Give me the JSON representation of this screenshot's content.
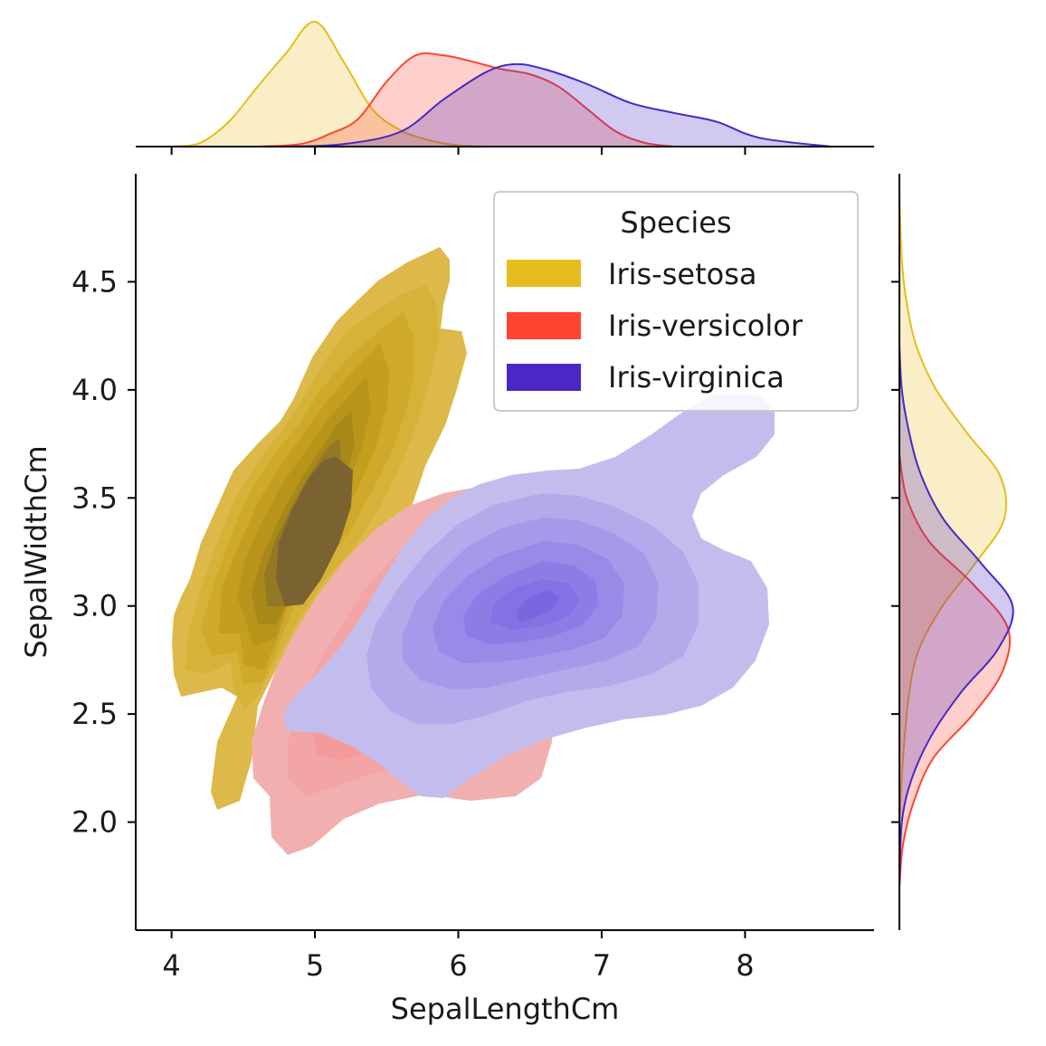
{
  "chart_data": {
    "type": "kde-joint",
    "xlabel": "SepalLengthCm",
    "ylabel": "SepalWidthCm",
    "xlim": [
      3.75,
      8.9
    ],
    "ylim": [
      1.5,
      5.0
    ],
    "xticks": [
      4,
      5,
      6,
      7,
      8
    ],
    "yticks": [
      2.0,
      2.5,
      3.0,
      3.5,
      4.0,
      4.5
    ],
    "ytick_labels": [
      "2.0",
      "2.5",
      "3.0",
      "3.5",
      "4.0",
      "4.5"
    ],
    "grid": false,
    "legend": {
      "title": "Species",
      "placement": "top-right",
      "entries": [
        "Iris-setosa",
        "Iris-versicolor",
        "Iris-virginica"
      ]
    },
    "series": [
      {
        "name": "Iris-setosa",
        "color": "#e6bd1c",
        "joint_peak": {
          "x": 5.0,
          "y": 3.4
        },
        "x_marginal": [
          [
            4.0,
            0
          ],
          [
            4.2,
            0.03
          ],
          [
            4.4,
            0.2
          ],
          [
            4.6,
            0.48
          ],
          [
            4.8,
            0.75
          ],
          [
            5.0,
            1.0
          ],
          [
            5.2,
            0.68
          ],
          [
            5.4,
            0.3
          ],
          [
            5.6,
            0.13
          ],
          [
            5.8,
            0.05
          ],
          [
            6.0,
            0.01
          ],
          [
            6.2,
            0
          ]
        ],
        "y_marginal": [
          [
            2.0,
            0
          ],
          [
            2.3,
            0.03
          ],
          [
            2.6,
            0.08
          ],
          [
            2.8,
            0.16
          ],
          [
            3.0,
            0.35
          ],
          [
            3.2,
            0.62
          ],
          [
            3.4,
            0.85
          ],
          [
            3.6,
            0.82
          ],
          [
            3.8,
            0.55
          ],
          [
            4.0,
            0.3
          ],
          [
            4.2,
            0.14
          ],
          [
            4.4,
            0.06
          ],
          [
            4.6,
            0.02
          ],
          [
            4.9,
            0
          ]
        ]
      },
      {
        "name": "Iris-versicolor",
        "color": "#ff4530",
        "joint_peak": {
          "x": 5.5,
          "y": 2.75
        },
        "x_marginal": [
          [
            4.6,
            0
          ],
          [
            4.9,
            0.02
          ],
          [
            5.1,
            0.1
          ],
          [
            5.3,
            0.22
          ],
          [
            5.5,
            0.52
          ],
          [
            5.7,
            0.73
          ],
          [
            5.9,
            0.73
          ],
          [
            6.1,
            0.68
          ],
          [
            6.3,
            0.62
          ],
          [
            6.5,
            0.58
          ],
          [
            6.7,
            0.48
          ],
          [
            6.9,
            0.3
          ],
          [
            7.1,
            0.12
          ],
          [
            7.3,
            0.03
          ],
          [
            7.5,
            0
          ]
        ],
        "y_marginal": [
          [
            1.7,
            0
          ],
          [
            1.9,
            0.03
          ],
          [
            2.1,
            0.12
          ],
          [
            2.3,
            0.28
          ],
          [
            2.5,
            0.6
          ],
          [
            2.7,
            0.84
          ],
          [
            2.9,
            0.88
          ],
          [
            3.1,
            0.6
          ],
          [
            3.3,
            0.24
          ],
          [
            3.5,
            0.06
          ],
          [
            3.7,
            0
          ]
        ]
      },
      {
        "name": "Iris-virginica",
        "color": "#4a28c4",
        "joint_peak": {
          "x": 6.55,
          "y": 3.0
        },
        "x_marginal": [
          [
            4.8,
            0
          ],
          [
            5.2,
            0.02
          ],
          [
            5.6,
            0.12
          ],
          [
            5.9,
            0.38
          ],
          [
            6.2,
            0.6
          ],
          [
            6.4,
            0.66
          ],
          [
            6.6,
            0.62
          ],
          [
            6.9,
            0.5
          ],
          [
            7.2,
            0.35
          ],
          [
            7.5,
            0.27
          ],
          [
            7.8,
            0.2
          ],
          [
            8.1,
            0.07
          ],
          [
            8.6,
            0
          ]
        ],
        "y_marginal": [
          [
            1.7,
            0
          ],
          [
            2.0,
            0.02
          ],
          [
            2.2,
            0.1
          ],
          [
            2.4,
            0.26
          ],
          [
            2.6,
            0.5
          ],
          [
            2.8,
            0.8
          ],
          [
            3.0,
            0.92
          ],
          [
            3.2,
            0.66
          ],
          [
            3.4,
            0.36
          ],
          [
            3.6,
            0.18
          ],
          [
            3.8,
            0.08
          ],
          [
            4.0,
            0.02
          ],
          [
            4.2,
            0
          ]
        ]
      }
    ]
  }
}
